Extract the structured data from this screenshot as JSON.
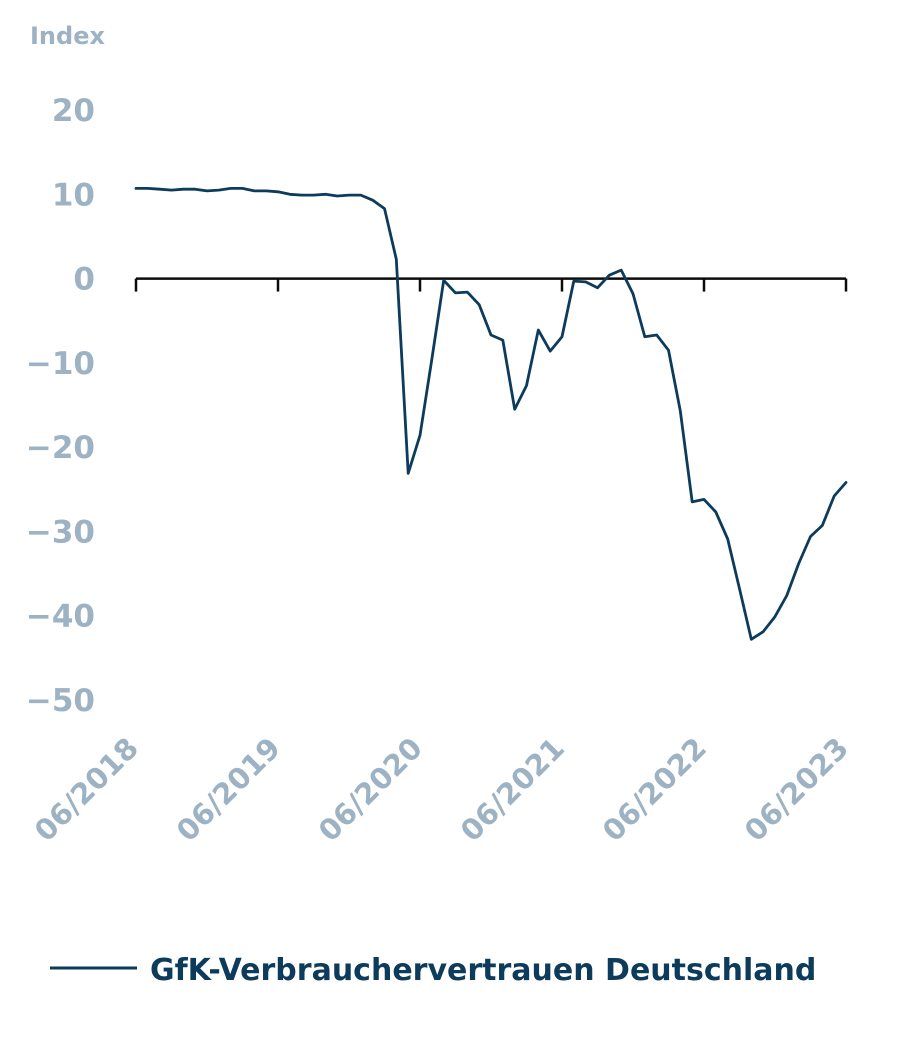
{
  "chart_data": {
    "type": "line",
    "ylabel": "Index",
    "ylim": [
      -50,
      20
    ],
    "yticks": [
      20,
      10,
      0,
      -10,
      -20,
      -30,
      -40,
      -50
    ],
    "ytick_labels": [
      "20",
      "10",
      "0",
      "−10",
      "−20",
      "−30",
      "−40",
      "−50"
    ],
    "xlim": [
      "2018-06",
      "2023-06"
    ],
    "xticks": [
      "2018-06",
      "2019-06",
      "2020-06",
      "2021-06",
      "2022-06",
      "2023-06"
    ],
    "xtick_labels": [
      "06/2018",
      "06/2019",
      "06/2020",
      "06/2021",
      "06/2022",
      "06/2023"
    ],
    "legend_position": "bottom",
    "series": [
      {
        "name": "GfK-Verbrauchervertrauen Deutschland",
        "color": "#0c3b5c",
        "x": [
          "2018-06",
          "2018-07",
          "2018-08",
          "2018-09",
          "2018-10",
          "2018-11",
          "2018-12",
          "2019-01",
          "2019-02",
          "2019-03",
          "2019-04",
          "2019-05",
          "2019-06",
          "2019-07",
          "2019-08",
          "2019-09",
          "2019-10",
          "2019-11",
          "2019-12",
          "2020-01",
          "2020-02",
          "2020-03",
          "2020-04",
          "2020-05",
          "2020-06",
          "2020-07",
          "2020-08",
          "2020-09",
          "2020-10",
          "2020-11",
          "2020-12",
          "2021-01",
          "2021-02",
          "2021-03",
          "2021-04",
          "2021-05",
          "2021-06",
          "2021-07",
          "2021-08",
          "2021-09",
          "2021-10",
          "2021-11",
          "2021-12",
          "2022-01",
          "2022-02",
          "2022-03",
          "2022-04",
          "2022-05",
          "2022-06",
          "2022-07",
          "2022-08",
          "2022-09",
          "2022-10",
          "2022-11",
          "2022-12",
          "2023-01",
          "2023-02",
          "2023-03",
          "2023-04",
          "2023-05",
          "2023-06"
        ],
        "values": [
          10.7,
          10.7,
          10.6,
          10.5,
          10.6,
          10.6,
          10.4,
          10.5,
          10.7,
          10.7,
          10.4,
          10.4,
          10.3,
          10.0,
          9.9,
          9.9,
          10.0,
          9.8,
          9.9,
          9.9,
          9.3,
          8.3,
          2.3,
          -23.1,
          -18.6,
          -9.6,
          -0.2,
          -1.7,
          -1.6,
          -3.1,
          -6.7,
          -7.3,
          -15.5,
          -12.7,
          -6.1,
          -8.6,
          -6.9,
          -0.3,
          -0.4,
          -1.1,
          0.4,
          1.0,
          -1.8,
          -6.9,
          -6.7,
          -8.5,
          -15.7,
          -26.5,
          -26.2,
          -27.7,
          -30.9,
          -36.8,
          -42.8,
          -41.9,
          -40.1,
          -37.6,
          -33.8,
          -30.6,
          -29.3,
          -25.8,
          -24.2
        ]
      }
    ]
  }
}
